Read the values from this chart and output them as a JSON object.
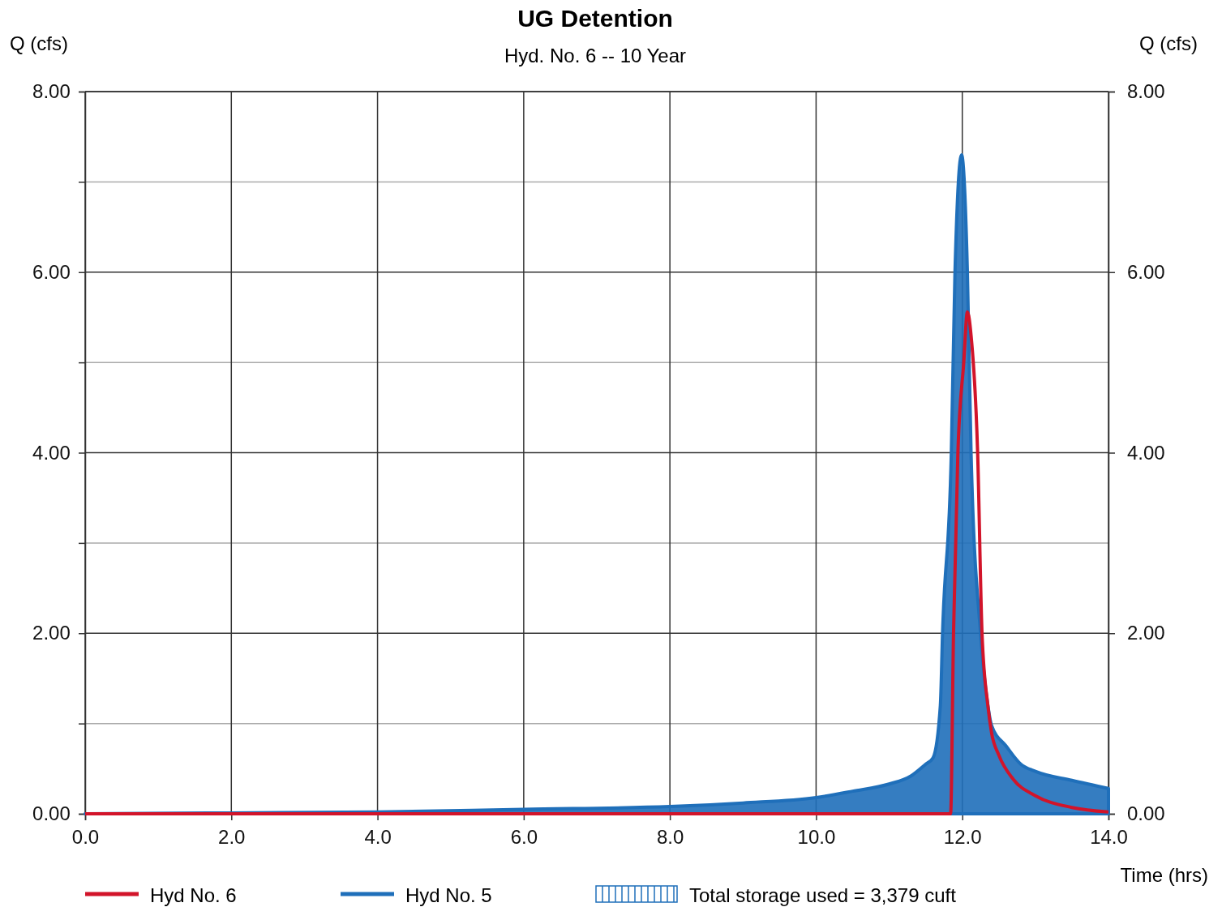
{
  "chart_data": {
    "type": "line",
    "title": "UG Detention",
    "subtitle": "Hyd. No. 6 -- 10 Year",
    "xlabel": "Time (hrs)",
    "ylabel": "Q (cfs)",
    "y2label": "Q (cfs)",
    "xlim": [
      0,
      14
    ],
    "xticks": [
      {
        "value": 0,
        "label": "0.0"
      },
      {
        "value": 2,
        "label": "2.0"
      },
      {
        "value": 4,
        "label": "4.0"
      },
      {
        "value": 6,
        "label": "6.0"
      },
      {
        "value": 8,
        "label": "8.0"
      },
      {
        "value": 10,
        "label": "10.0"
      },
      {
        "value": 12,
        "label": "12.0"
      },
      {
        "value": 14,
        "label": "14.0"
      }
    ],
    "ylim": [
      0,
      8
    ],
    "yticks": [
      {
        "value": 0,
        "label": "0.00"
      },
      {
        "value": 1,
        "label": null
      },
      {
        "value": 2,
        "label": "2.00"
      },
      {
        "value": 3,
        "label": null
      },
      {
        "value": 4,
        "label": "4.00"
      },
      {
        "value": 5,
        "label": null
      },
      {
        "value": 6,
        "label": "6.00"
      },
      {
        "value": 7,
        "label": null
      },
      {
        "value": 8,
        "label": "8.00"
      }
    ],
    "y2lim": [
      0,
      8
    ],
    "y2ticks": [
      {
        "value": 0,
        "label": "0.00"
      },
      {
        "value": 2,
        "label": "2.00"
      },
      {
        "value": 4,
        "label": "4.00"
      },
      {
        "value": 6,
        "label": "6.00"
      },
      {
        "value": 8,
        "label": "8.00"
      }
    ],
    "grid": true,
    "legend": "bottom",
    "annotations": [
      "Total storage used = 3,379 cuft"
    ],
    "series": [
      {
        "name": "Hyd No. 5",
        "type": "area",
        "color": "#1f6fba",
        "x": [
          0,
          2,
          4,
          6,
          8,
          9,
          10,
          10.5,
          11,
          11.3,
          11.5,
          11.6,
          11.7,
          11.73,
          11.85,
          11.9,
          11.99,
          12.07,
          12.12,
          12.25,
          12.35,
          12.4,
          12.6,
          12.8,
          13,
          13.5,
          14
        ],
        "values": [
          0,
          0.01,
          0.02,
          0.05,
          0.08,
          0.12,
          0.18,
          0.25,
          0.33,
          0.42,
          0.55,
          0.62,
          1.2,
          2,
          4,
          6,
          7.3,
          6,
          4,
          2,
          1.2,
          0.98,
          0.75,
          0.55,
          0.47,
          0.37,
          0.28
        ]
      },
      {
        "name": "Hyd No. 6",
        "color": "#d2142a",
        "x": [
          0,
          11.84,
          11.88,
          11.94,
          12.02,
          12.07,
          12.12,
          12.21,
          12.27,
          12.35,
          12.4,
          12.5,
          12.7,
          13,
          13.5,
          14
        ],
        "values": [
          0,
          0,
          2,
          4,
          5,
          5.56,
          5.3,
          4,
          2,
          1.2,
          0.9,
          0.65,
          0.38,
          0.2,
          0.07,
          0.02
        ]
      }
    ]
  }
}
